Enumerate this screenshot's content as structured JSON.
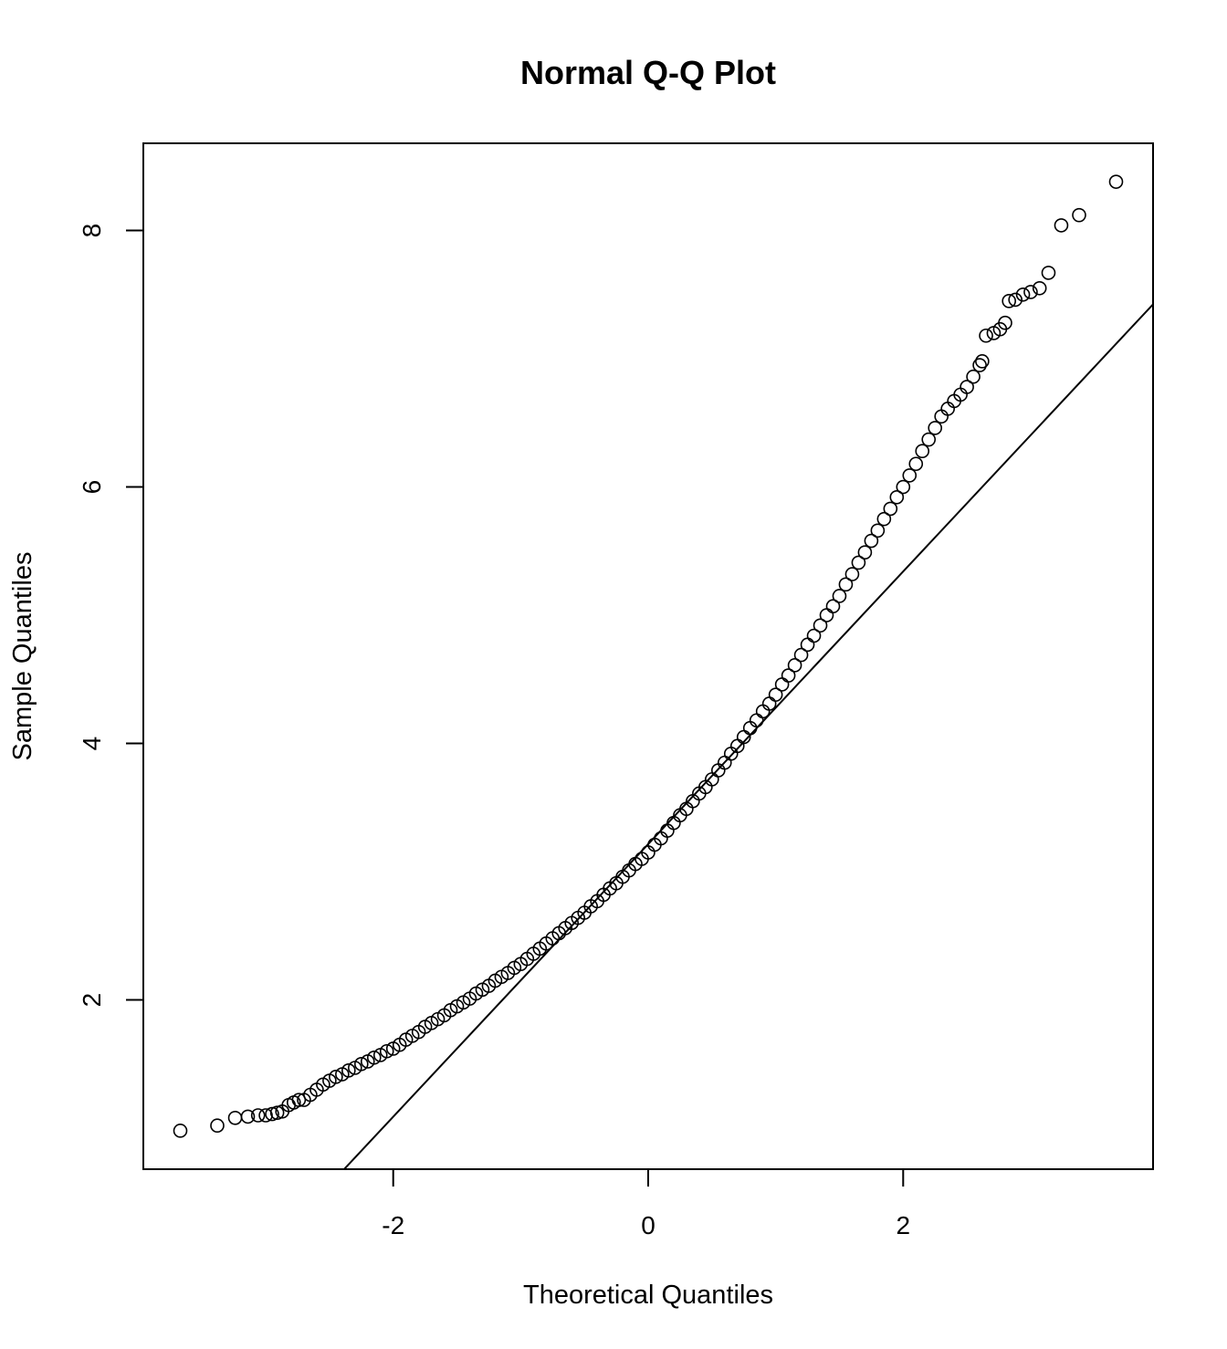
{
  "chart_data": {
    "type": "scatter",
    "title": "Normal Q-Q Plot",
    "x_label": "Theoretical Quantiles",
    "y_label": "Sample Quantiles",
    "xlim": [
      -3.96,
      3.96
    ],
    "ylim": [
      0.68,
      8.68
    ],
    "xticks": [
      -2,
      0,
      2
    ],
    "yticks": [
      2,
      4,
      6,
      8
    ],
    "color": "#000000",
    "qqline": {
      "intercept": 3.215,
      "slope": 1.063
    },
    "x": [
      -3.67,
      -3.38,
      -3.24,
      -3.14,
      -3.06,
      -3.0,
      -2.95,
      -2.91,
      -2.87,
      -2.82,
      -2.78,
      -2.74,
      -2.7,
      -2.65,
      -2.6,
      -2.55,
      -2.5,
      -2.45,
      -2.4,
      -2.35,
      -2.3,
      -2.25,
      -2.2,
      -2.15,
      -2.1,
      -2.05,
      -2.0,
      -1.95,
      -1.9,
      -1.85,
      -1.8,
      -1.75,
      -1.7,
      -1.65,
      -1.6,
      -1.55,
      -1.5,
      -1.45,
      -1.4,
      -1.35,
      -1.3,
      -1.25,
      -1.2,
      -1.15,
      -1.1,
      -1.05,
      -1.0,
      -0.95,
      -0.9,
      -0.85,
      -0.8,
      -0.75,
      -0.7,
      -0.65,
      -0.6,
      -0.55,
      -0.5,
      -0.45,
      -0.4,
      -0.35,
      -0.3,
      -0.25,
      -0.2,
      -0.15,
      -0.1,
      -0.05,
      0.0,
      0.05,
      0.1,
      0.15,
      0.2,
      0.25,
      0.3,
      0.35,
      0.4,
      0.45,
      0.5,
      0.55,
      0.6,
      0.65,
      0.7,
      0.75,
      0.8,
      0.85,
      0.9,
      0.95,
      1.0,
      1.05,
      1.1,
      1.15,
      1.2,
      1.25,
      1.3,
      1.35,
      1.4,
      1.45,
      1.5,
      1.55,
      1.6,
      1.65,
      1.7,
      1.75,
      1.8,
      1.85,
      1.9,
      1.95,
      2.0,
      2.05,
      2.1,
      2.15,
      2.2,
      2.25,
      2.3,
      2.35,
      2.4,
      2.45,
      2.5,
      2.55,
      2.6,
      2.62,
      2.65,
      2.71,
      2.76,
      2.8,
      2.83,
      2.88,
      2.94,
      3.0,
      3.07,
      3.14,
      3.24,
      3.38,
      3.67
    ],
    "y": [
      0.98,
      1.02,
      1.08,
      1.09,
      1.1,
      1.1,
      1.11,
      1.12,
      1.13,
      1.18,
      1.2,
      1.22,
      1.22,
      1.26,
      1.3,
      1.34,
      1.37,
      1.4,
      1.42,
      1.45,
      1.47,
      1.5,
      1.52,
      1.55,
      1.57,
      1.6,
      1.62,
      1.65,
      1.69,
      1.72,
      1.75,
      1.79,
      1.82,
      1.85,
      1.88,
      1.92,
      1.95,
      1.98,
      2.01,
      2.05,
      2.08,
      2.11,
      2.15,
      2.18,
      2.21,
      2.25,
      2.28,
      2.32,
      2.36,
      2.4,
      2.44,
      2.48,
      2.52,
      2.56,
      2.6,
      2.64,
      2.68,
      2.73,
      2.77,
      2.82,
      2.87,
      2.91,
      2.96,
      3.01,
      3.06,
      3.1,
      3.15,
      3.21,
      3.26,
      3.32,
      3.38,
      3.44,
      3.49,
      3.55,
      3.61,
      3.66,
      3.72,
      3.79,
      3.85,
      3.92,
      3.98,
      4.05,
      4.12,
      4.18,
      4.25,
      4.31,
      4.38,
      4.46,
      4.53,
      4.61,
      4.69,
      4.77,
      4.84,
      4.92,
      5.0,
      5.07,
      5.15,
      5.24,
      5.32,
      5.41,
      5.49,
      5.58,
      5.66,
      5.75,
      5.83,
      5.92,
      6.0,
      6.09,
      6.18,
      6.28,
      6.37,
      6.46,
      6.55,
      6.61,
      6.67,
      6.72,
      6.78,
      6.86,
      6.95,
      6.98,
      7.18,
      7.2,
      7.23,
      7.28,
      7.45,
      7.46,
      7.5,
      7.52,
      7.55,
      7.67,
      8.04,
      8.12,
      8.38
    ]
  }
}
